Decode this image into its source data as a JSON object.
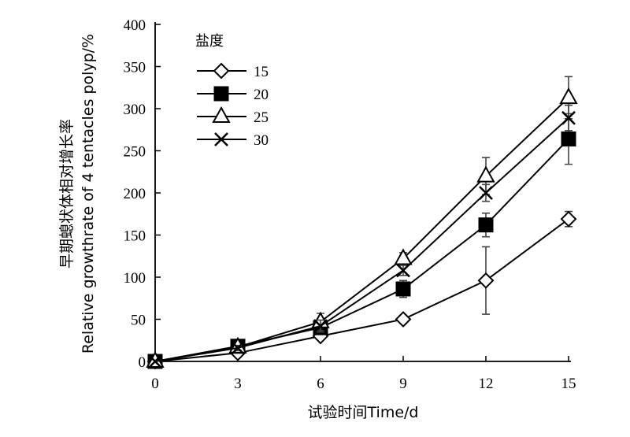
{
  "chart_data": {
    "type": "line",
    "xlabel": "试验时间Time/d",
    "ylabel_cn": "早期螅状体相对增长率",
    "ylabel_en": "Relative growthrate of 4 tentacles polyp/%",
    "x": [
      0,
      3,
      6,
      9,
      12,
      15
    ],
    "xticks": [
      "0",
      "3",
      "6",
      "9",
      "12",
      "15"
    ],
    "yticks": [
      "0",
      "50",
      "100",
      "150",
      "200",
      "250",
      "300",
      "350",
      "400"
    ],
    "xlim": [
      0,
      15
    ],
    "ylim": [
      0,
      400
    ],
    "legend_title": "盐度",
    "legend_position": "top-left",
    "grid": false,
    "series": [
      {
        "name": "15",
        "marker": "diamond-open",
        "values": [
          0,
          10,
          30,
          50,
          96,
          169
        ],
        "err": [
          0,
          3,
          4,
          5,
          40,
          9
        ]
      },
      {
        "name": "20",
        "marker": "square-filled",
        "values": [
          0,
          18,
          40,
          86,
          162,
          264
        ],
        "err": [
          0,
          3,
          7,
          10,
          14,
          30
        ]
      },
      {
        "name": "25",
        "marker": "triangle-open",
        "values": [
          0,
          17,
          47,
          122,
          220,
          313
        ],
        "err": [
          0,
          4,
          10,
          7,
          22,
          25
        ]
      },
      {
        "name": "30",
        "marker": "x",
        "values": [
          0,
          16,
          42,
          108,
          200,
          289
        ],
        "err": [
          0,
          3,
          7,
          6,
          10,
          15
        ]
      }
    ]
  }
}
